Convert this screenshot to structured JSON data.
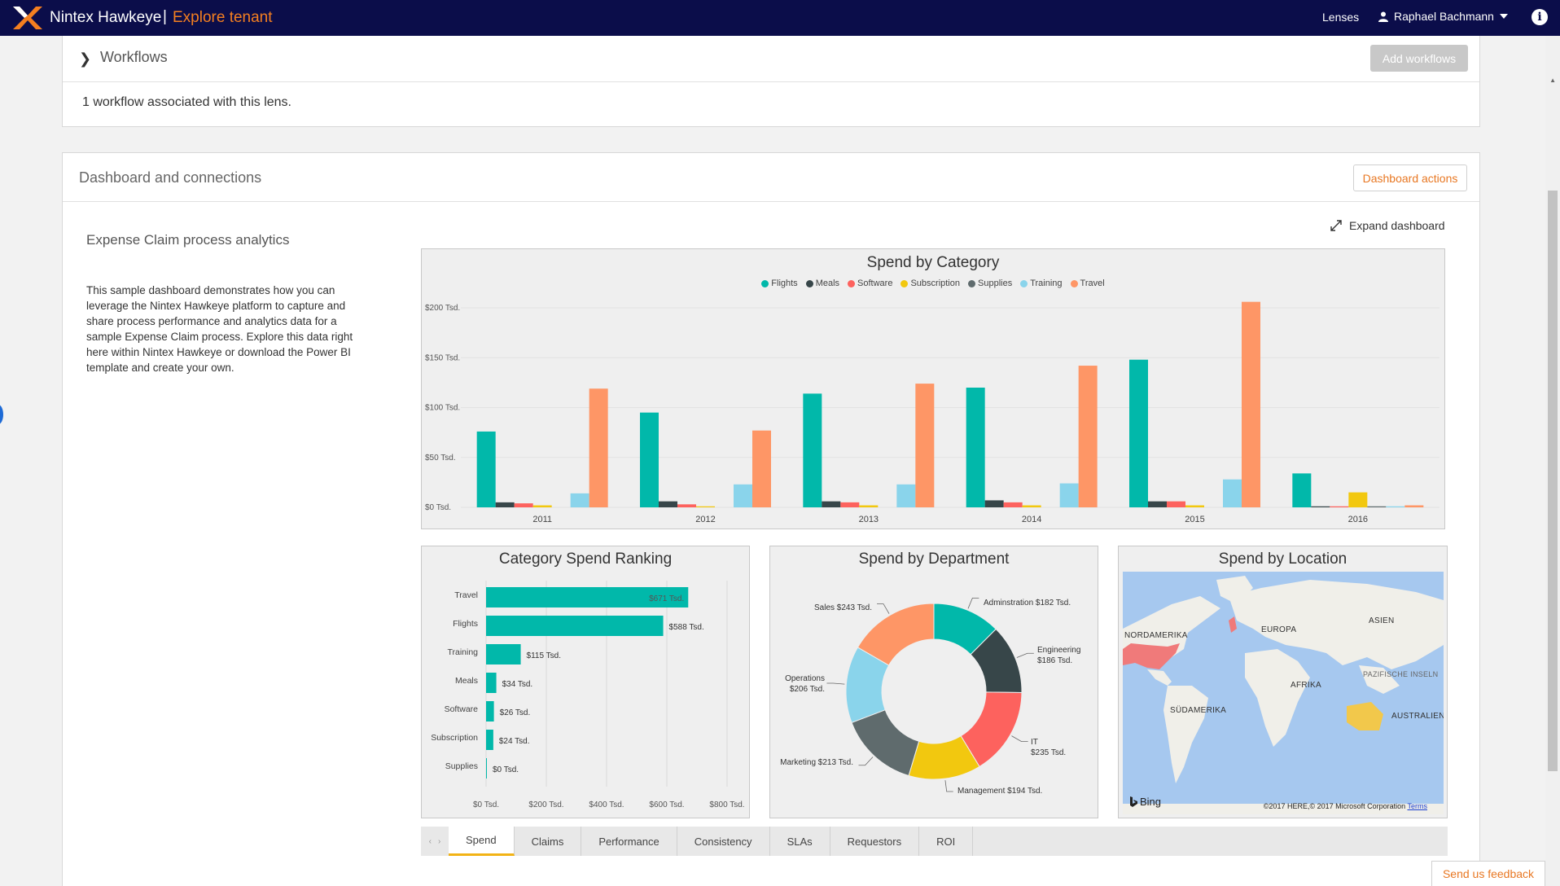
{
  "topbar": {
    "brand": "Nintex Hawkeye",
    "separator": "|",
    "tenant": "Explore tenant",
    "lenses": "Lenses",
    "user": "Raphael Bachmann",
    "info": "i",
    "colors": {
      "bar": "#0b0d4a",
      "accent": "#f47f20"
    }
  },
  "workflows": {
    "title": "Workflows",
    "add_button": "Add workflows",
    "summary": "1 workflow associated with this lens."
  },
  "dashboard": {
    "title": "Dashboard and connections",
    "actions_button": "Dashboard actions",
    "subtitle": "Expense Claim process analytics",
    "description": "This sample dashboard demonstrates how you can leverage the Nintex Hawkeye platform to capture and share process performance and analytics data for a sample Expense Claim process. Explore this data right here within Nintex Hawkeye or download the Power BI template and create your own.",
    "expand": "Expand dashboard"
  },
  "chart_data": [
    {
      "type": "bar",
      "title": "Spend by Category",
      "categories": [
        "2011",
        "2012",
        "2013",
        "2014",
        "2015",
        "2016"
      ],
      "ylim": [
        0,
        200
      ],
      "yticks": [
        "$0 Tsd.",
        "$50 Tsd.",
        "$100 Tsd.",
        "$150 Tsd.",
        "$200 Tsd."
      ],
      "ytick_values": [
        0,
        50,
        100,
        150,
        200
      ],
      "grid": true,
      "legend": "top-center",
      "series": [
        {
          "name": "Flights",
          "color": "#01b8aa",
          "values": [
            76,
            95,
            114,
            120,
            148,
            34
          ]
        },
        {
          "name": "Meals",
          "color": "#374649",
          "values": [
            5,
            6,
            6,
            7,
            6,
            1
          ]
        },
        {
          "name": "Software",
          "color": "#fd625e",
          "values": [
            4,
            3,
            5,
            5,
            6,
            1
          ]
        },
        {
          "name": "Subscription",
          "color": "#f2c80f",
          "values": [
            2,
            1,
            2,
            2,
            2,
            15
          ]
        },
        {
          "name": "Supplies",
          "color": "#5f6b6d",
          "values": [
            0,
            0,
            0,
            0,
            0,
            1
          ]
        },
        {
          "name": "Training",
          "color": "#8ad4eb",
          "values": [
            14,
            23,
            23,
            24,
            28,
            1
          ]
        },
        {
          "name": "Travel",
          "color": "#fe9666",
          "values": [
            119,
            77,
            124,
            142,
            206,
            2
          ]
        }
      ]
    },
    {
      "type": "bar",
      "orientation": "horizontal",
      "title": "Category Spend Ranking",
      "categories": [
        "Travel",
        "Flights",
        "Training",
        "Meals",
        "Software",
        "Subscription",
        "Supplies"
      ],
      "values": [
        671,
        588,
        115,
        34,
        26,
        24,
        0
      ],
      "labels": [
        "$671 Tsd.",
        "$588 Tsd.",
        "$115 Tsd.",
        "$34 Tsd.",
        "$26 Tsd.",
        "$24 Tsd.",
        "$0 Tsd."
      ],
      "xlim": [
        0,
        800
      ],
      "xticks": [
        "$0 Tsd.",
        "$200 Tsd.",
        "$400 Tsd.",
        "$600 Tsd.",
        "$800 Tsd."
      ],
      "xtick_values": [
        0,
        200,
        400,
        600,
        800
      ],
      "color": "#01b8aa"
    },
    {
      "type": "pie",
      "title": "Spend by Department",
      "donut": true,
      "slices": [
        {
          "name": "Adminstration",
          "value": 182,
          "label": "Adminstration $182 Tsd.",
          "color": "#01b8aa"
        },
        {
          "name": "Engineering",
          "value": 186,
          "label_lines": [
            "Engineering",
            "$186 Tsd."
          ],
          "color": "#374649"
        },
        {
          "name": "IT",
          "value": 235,
          "label_lines": [
            "IT",
            "$235 Tsd."
          ],
          "color": "#fd625e"
        },
        {
          "name": "Management",
          "value": 194,
          "label": "Management $194 Tsd.",
          "color": "#f2c80f"
        },
        {
          "name": "Marketing",
          "value": 213,
          "label": "Marketing $213 Tsd.",
          "color": "#5f6b6d"
        },
        {
          "name": "Operations",
          "value": 206,
          "label_lines": [
            "Operations",
            "$206 Tsd."
          ],
          "color": "#8ad4eb"
        },
        {
          "name": "Sales",
          "value": 243,
          "label": "Sales $243 Tsd.",
          "color": "#fe9666"
        }
      ]
    }
  ],
  "map": {
    "title": "Spend by Location",
    "labels": {
      "north_america": "NORDAMERIKA",
      "europe": "EUROPA",
      "asia": "ASIEN",
      "pacific": "PAZIFISCHE INSELN",
      "africa": "AFRIKA",
      "south_america": "SÜDAMERIKA",
      "australia": "AUSTRALIEN"
    },
    "bing": "Bing",
    "copyright": "©2017 HERE,© 2017 Microsoft Corporation",
    "terms": "Terms"
  },
  "tabs": {
    "prev": "‹",
    "next": "›",
    "items": [
      {
        "label": "Spend",
        "active": true
      },
      {
        "label": "Claims"
      },
      {
        "label": "Performance"
      },
      {
        "label": "Consistency"
      },
      {
        "label": "SLAs"
      },
      {
        "label": "Requestors"
      },
      {
        "label": "ROI"
      }
    ]
  },
  "feedback": "Send us feedback"
}
